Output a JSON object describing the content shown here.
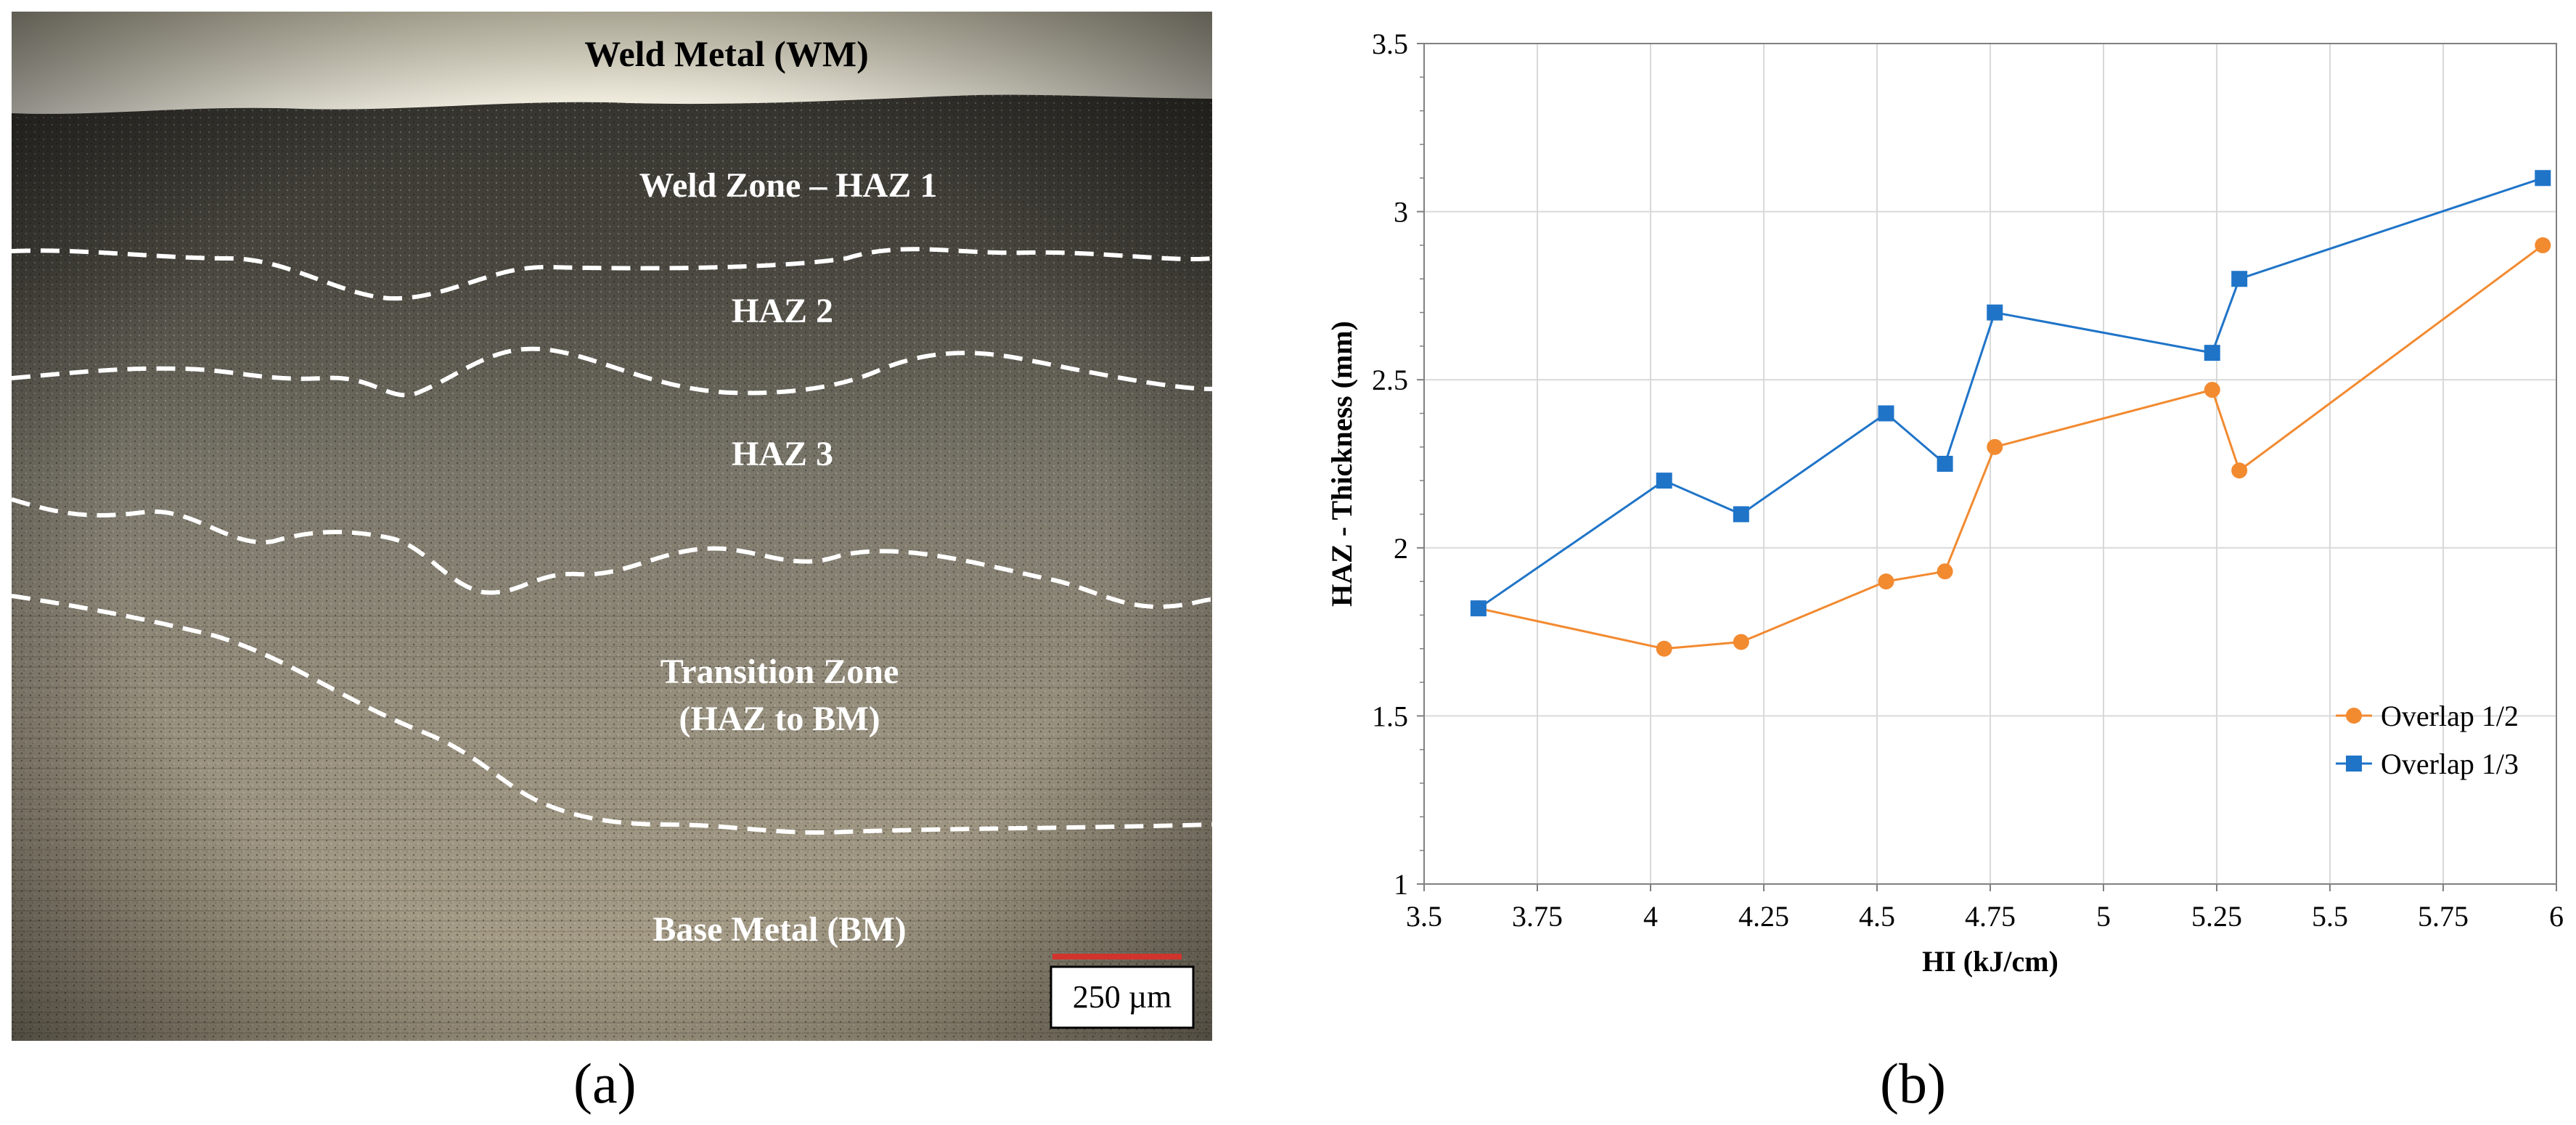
{
  "panel_a": {
    "caption": "(a)",
    "labels": {
      "weld_metal": "Weld Metal (WM)",
      "haz1": "Weld Zone – HAZ 1",
      "haz2": "HAZ 2",
      "haz3": "HAZ 3",
      "transition_1": "Transition Zone",
      "transition_2": "(HAZ to BM)",
      "base_metal": "Base Metal (BM)"
    },
    "scale_bar": {
      "label": "250 µm",
      "color": "#d0342c"
    }
  },
  "panel_b": {
    "caption": "(b)"
  },
  "chart_data": {
    "type": "line",
    "title": "",
    "xlabel": "HI (kJ/cm)",
    "ylabel": "HAZ - Thickness (mm)",
    "xlim": [
      3.5,
      6
    ],
    "ylim": [
      1,
      3.5
    ],
    "x_ticks": [
      "3.5",
      "3.75",
      "4",
      "4.25",
      "4.5",
      "4.75",
      "5",
      "5.25",
      "5.5",
      "5.75",
      "6"
    ],
    "y_ticks": [
      "1",
      "1.5",
      "2",
      "2.5",
      "3",
      "3.5"
    ],
    "grid": true,
    "legend_position": "bottom-right",
    "series": [
      {
        "name": "Overlap 1/2",
        "color": "#f28a30",
        "marker": "circle",
        "x": [
          3.62,
          4.03,
          4.2,
          4.52,
          4.65,
          4.76,
          5.24,
          5.3,
          5.97
        ],
        "y": [
          1.82,
          1.7,
          1.72,
          1.9,
          1.93,
          2.3,
          2.47,
          2.23,
          2.9
        ]
      },
      {
        "name": "Overlap 1/3",
        "color": "#1f74c8",
        "marker": "square",
        "x": [
          3.62,
          4.03,
          4.2,
          4.52,
          4.65,
          4.76,
          5.24,
          5.3,
          5.97
        ],
        "y": [
          1.82,
          2.2,
          2.1,
          2.4,
          2.25,
          2.7,
          2.58,
          2.8,
          3.1
        ]
      }
    ]
  }
}
